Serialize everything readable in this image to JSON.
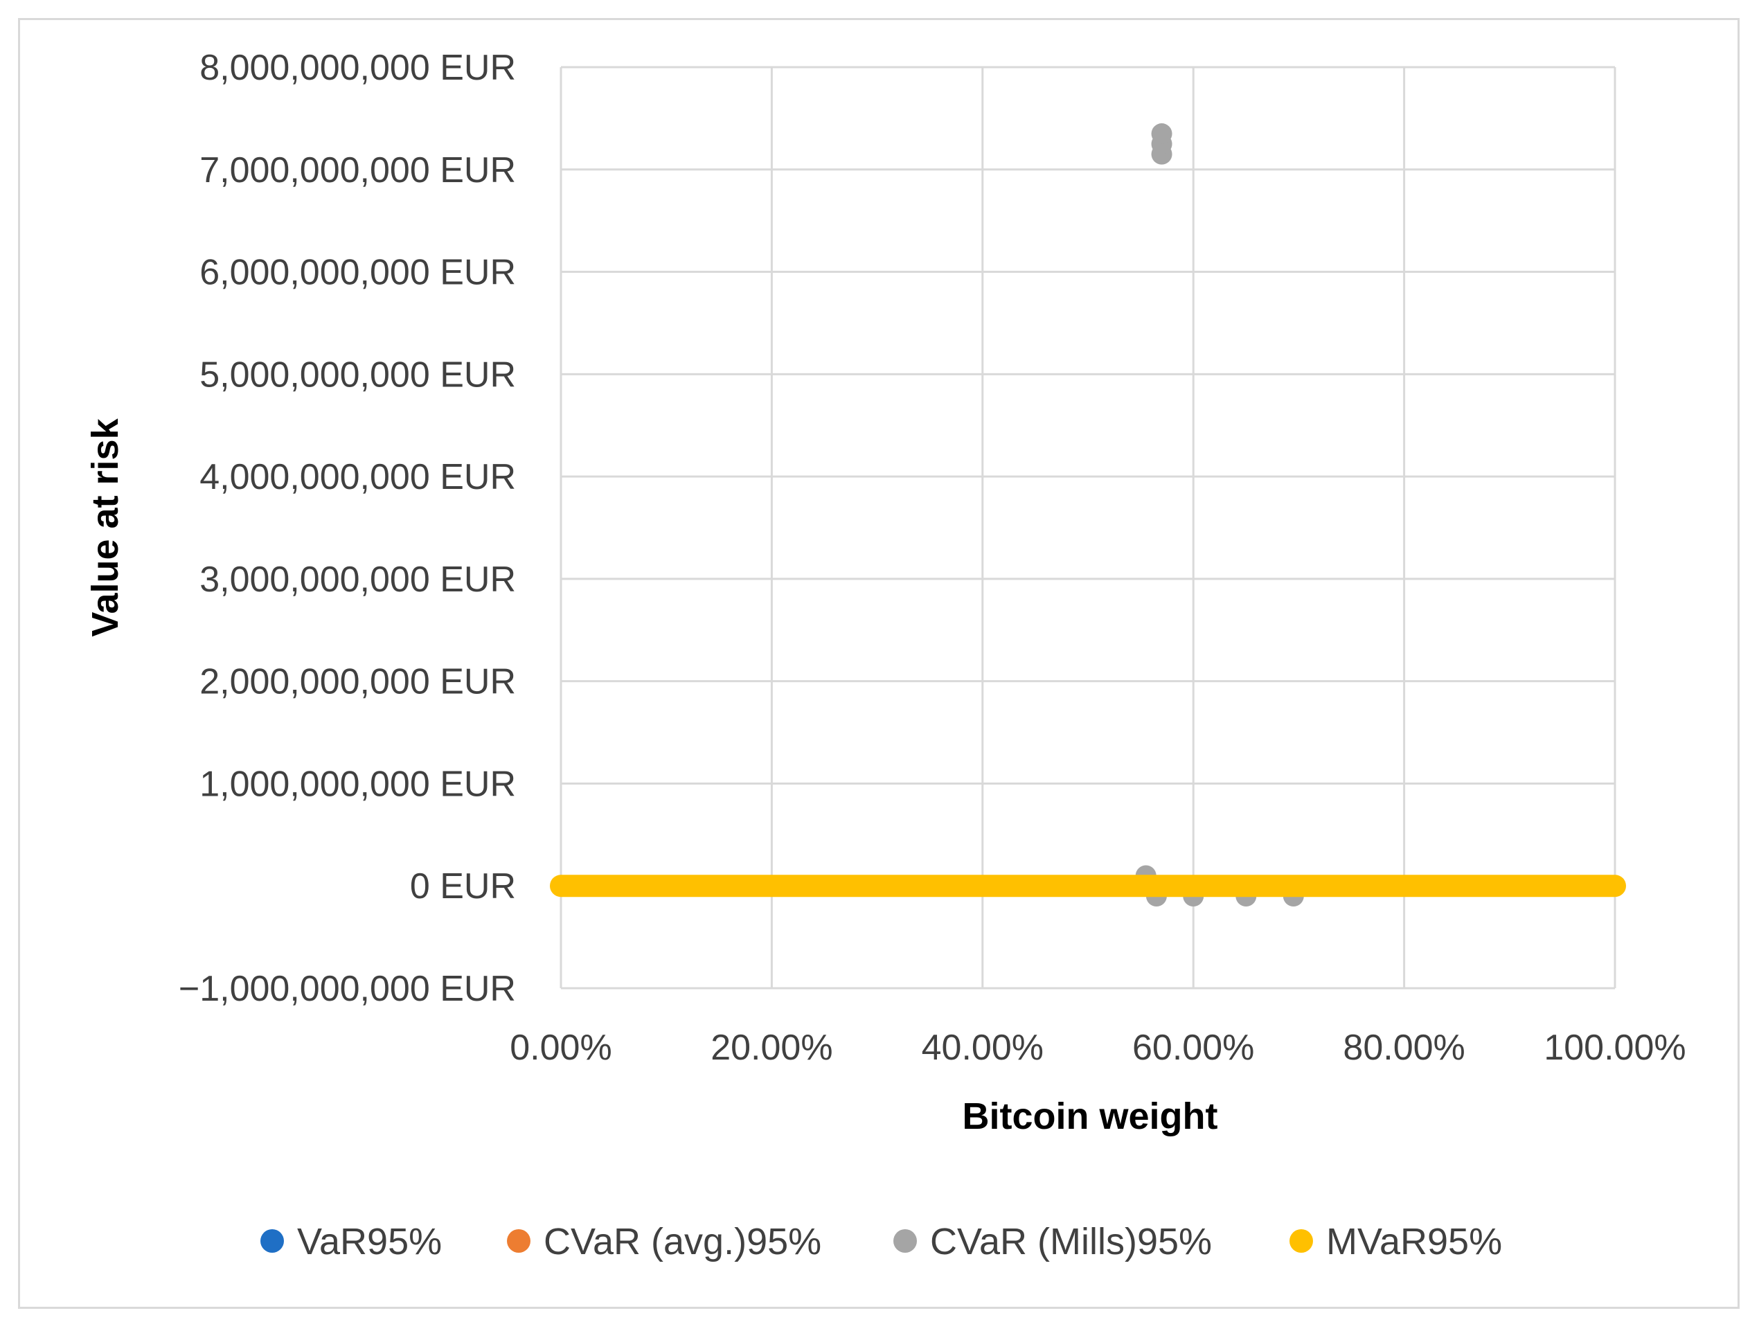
{
  "chart_data": {
    "type": "scatter",
    "title": "",
    "xlabel": "Bitcoin weight",
    "ylabel": "Value at risk",
    "xlim": [
      0,
      1
    ],
    "ylim": [
      -1000000000,
      8000000000
    ],
    "x_ticks": [
      0,
      0.2,
      0.4,
      0.6,
      0.8,
      1.0
    ],
    "x_tick_labels": [
      "0.00%",
      "20.00%",
      "40.00%",
      "60.00%",
      "80.00%",
      "100.00%"
    ],
    "y_ticks": [
      8000000000,
      7000000000,
      6000000000,
      5000000000,
      4000000000,
      3000000000,
      2000000000,
      1000000000,
      0,
      -1000000000
    ],
    "y_tick_labels": [
      "8,000,000,000 EUR",
      "7,000,000,000 EUR",
      "6,000,000,000 EUR",
      "5,000,000,000 EUR",
      "4,000,000,000 EUR",
      "3,000,000,000 EUR",
      "2,000,000,000 EUR",
      "1,000,000,000 EUR",
      "0 EUR",
      "−1,000,000,000 EUR"
    ],
    "grid": true,
    "legend_position": "bottom",
    "series": [
      {
        "name": "VaR95%",
        "color": "#1f6fc5",
        "points": [
          [
            0,
            0
          ],
          [
            0.25,
            0
          ],
          [
            0.5,
            0
          ],
          [
            0.75,
            0
          ],
          [
            1.0,
            0
          ]
        ]
      },
      {
        "name": "CVaR (avg.)95%",
        "color": "#ed7d31",
        "points": [
          [
            0,
            0
          ],
          [
            0.25,
            0
          ],
          [
            0.5,
            0
          ],
          [
            0.75,
            0
          ],
          [
            1.0,
            0
          ]
        ]
      },
      {
        "name": "CVaR (Mills)95%",
        "color": "#a5a5a5",
        "points": [
          [
            0,
            0
          ],
          [
            0.2,
            0
          ],
          [
            0.4,
            0
          ],
          [
            0.555,
            100000000
          ],
          [
            0.565,
            -100000000
          ],
          [
            0.57,
            7150000000
          ],
          [
            0.57,
            7250000000
          ],
          [
            0.57,
            7350000000
          ],
          [
            0.6,
            -100000000
          ],
          [
            0.65,
            -100000000
          ],
          [
            0.695,
            -100000000
          ],
          [
            0.8,
            0
          ],
          [
            1.0,
            0
          ]
        ]
      },
      {
        "name": "MVaR95%",
        "color": "#ffc000",
        "points": [
          [
            0,
            0
          ],
          [
            0.1,
            0
          ],
          [
            0.2,
            0
          ],
          [
            0.3,
            0
          ],
          [
            0.4,
            0
          ],
          [
            0.5,
            0
          ],
          [
            0.6,
            0
          ],
          [
            0.7,
            0
          ],
          [
            0.8,
            0
          ],
          [
            0.9,
            0
          ],
          [
            1.0,
            0
          ]
        ]
      }
    ]
  }
}
